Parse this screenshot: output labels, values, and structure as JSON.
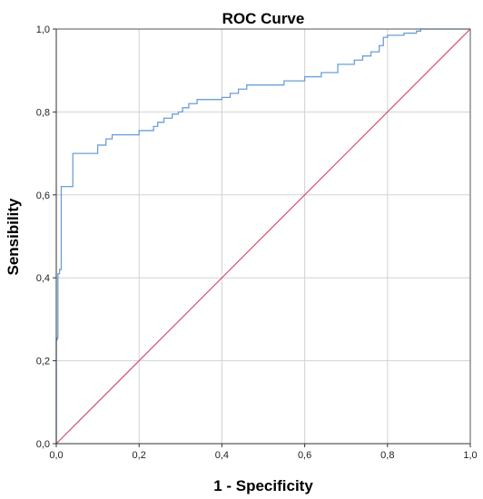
{
  "chart_data": {
    "type": "line",
    "title": "ROC Curve",
    "xlabel": "1 - Specificity",
    "ylabel": "Sensibility",
    "xlim": [
      0,
      1
    ],
    "ylim": [
      0,
      1
    ],
    "grid": true,
    "x_ticks": [
      "0,0",
      "0,2",
      "0,4",
      "0,6",
      "0,8",
      "1,0"
    ],
    "y_ticks": [
      "0,0",
      "0,2",
      "0,4",
      "0,6",
      "0,8",
      "1,0"
    ],
    "series": [
      {
        "color": "#6a9fd8",
        "x": [
          0,
          0,
          0.002,
          0.002,
          0.004,
          0.004,
          0.008,
          0.008,
          0.012,
          0.012,
          0.025,
          0.025,
          0.04,
          0.04,
          0.1,
          0.1,
          0.12,
          0.12,
          0.135,
          0.135,
          0.2,
          0.2,
          0.235,
          0.235,
          0.245,
          0.245,
          0.26,
          0.26,
          0.28,
          0.28,
          0.295,
          0.295,
          0.305,
          0.305,
          0.32,
          0.32,
          0.34,
          0.34,
          0.4,
          0.4,
          0.42,
          0.42,
          0.44,
          0.44,
          0.46,
          0.46,
          0.55,
          0.55,
          0.6,
          0.6,
          0.64,
          0.64,
          0.68,
          0.68,
          0.72,
          0.72,
          0.74,
          0.74,
          0.76,
          0.76,
          0.78,
          0.78,
          0.79,
          0.79,
          0.8,
          0.8,
          0.84,
          0.84,
          0.87,
          0.87,
          0.88,
          0.88,
          1.0
        ],
        "y": [
          0,
          0.25,
          0.25,
          0.255,
          0.255,
          0.41,
          0.41,
          0.42,
          0.42,
          0.62,
          0.62,
          0.62,
          0.62,
          0.7,
          0.7,
          0.72,
          0.72,
          0.735,
          0.735,
          0.745,
          0.745,
          0.755,
          0.755,
          0.765,
          0.765,
          0.775,
          0.775,
          0.785,
          0.785,
          0.795,
          0.795,
          0.8,
          0.8,
          0.81,
          0.81,
          0.82,
          0.82,
          0.83,
          0.83,
          0.835,
          0.835,
          0.845,
          0.845,
          0.855,
          0.855,
          0.865,
          0.865,
          0.875,
          0.875,
          0.885,
          0.885,
          0.895,
          0.895,
          0.915,
          0.915,
          0.925,
          0.925,
          0.935,
          0.935,
          0.945,
          0.945,
          0.96,
          0.96,
          0.98,
          0.98,
          0.985,
          0.985,
          0.99,
          0.99,
          0.995,
          0.995,
          1.0,
          1.0
        ]
      },
      {
        "color": "#d0506e",
        "x": [
          0,
          1
        ],
        "y": [
          0,
          1
        ]
      }
    ]
  }
}
